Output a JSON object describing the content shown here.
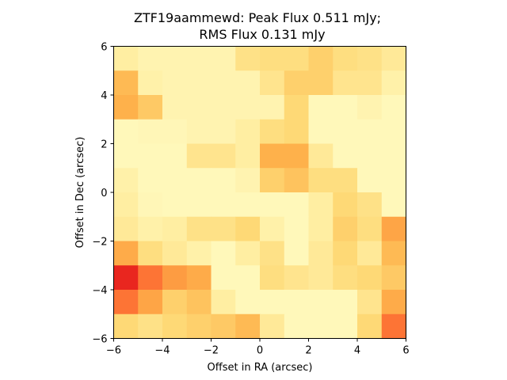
{
  "chart_data": {
    "type": "heatmap",
    "title": "ZTF19aammewd: Peak Flux 0.511 mJy;",
    "subtitle": "RMS Flux 0.131 mJy",
    "xlabel": "Offset in RA (arcsec)",
    "ylabel": "Offset in Dec (arcsec)",
    "xlim": [
      -6,
      6
    ],
    "ylim": [
      -6,
      6
    ],
    "xticks": [
      -6,
      -4,
      -2,
      0,
      2,
      4,
      6
    ],
    "yticks": [
      -6,
      -4,
      -2,
      0,
      2,
      4,
      6
    ],
    "xtick_labels": [
      "−6",
      "−4",
      "−2",
      "0",
      "2",
      "4",
      "6"
    ],
    "ytick_labels": [
      "−6",
      "−4",
      "−2",
      "0",
      "2",
      "4",
      "6"
    ],
    "grid": false,
    "colormap": "YlOrRd",
    "vmin": 0,
    "vmax": 1,
    "rows_top_to_bottom": [
      [
        0.12,
        0.08,
        0.08,
        0.08,
        0.08,
        0.2,
        0.22,
        0.22,
        0.28,
        0.22,
        0.2,
        0.15
      ],
      [
        0.35,
        0.1,
        0.08,
        0.08,
        0.08,
        0.08,
        0.18,
        0.28,
        0.28,
        0.18,
        0.18,
        0.1
      ],
      [
        0.38,
        0.3,
        0.08,
        0.08,
        0.08,
        0.08,
        0.08,
        0.25,
        0.05,
        0.05,
        0.08,
        0.05
      ],
      [
        0.05,
        0.06,
        0.06,
        0.08,
        0.08,
        0.12,
        0.22,
        0.25,
        0.05,
        0.05,
        0.05,
        0.05
      ],
      [
        0.05,
        0.05,
        0.05,
        0.18,
        0.18,
        0.12,
        0.38,
        0.38,
        0.15,
        0.05,
        0.05,
        0.05
      ],
      [
        0.1,
        0.05,
        0.05,
        0.05,
        0.05,
        0.08,
        0.28,
        0.32,
        0.22,
        0.22,
        0.05,
        0.05
      ],
      [
        0.12,
        0.06,
        0.05,
        0.05,
        0.05,
        0.05,
        0.05,
        0.05,
        0.12,
        0.25,
        0.2,
        0.05
      ],
      [
        0.15,
        0.1,
        0.12,
        0.2,
        0.2,
        0.25,
        0.1,
        0.05,
        0.12,
        0.28,
        0.22,
        0.42
      ],
      [
        0.4,
        0.22,
        0.15,
        0.1,
        0.05,
        0.12,
        0.2,
        0.05,
        0.15,
        0.25,
        0.15,
        0.35
      ],
      [
        0.72,
        0.55,
        0.45,
        0.4,
        0.05,
        0.05,
        0.22,
        0.18,
        0.15,
        0.22,
        0.25,
        0.3
      ],
      [
        0.55,
        0.42,
        0.28,
        0.32,
        0.12,
        0.05,
        0.05,
        0.05,
        0.05,
        0.05,
        0.18,
        0.4
      ],
      [
        0.25,
        0.2,
        0.25,
        0.28,
        0.3,
        0.35,
        0.15,
        0.05,
        0.05,
        0.05,
        0.25,
        0.55
      ]
    ]
  }
}
